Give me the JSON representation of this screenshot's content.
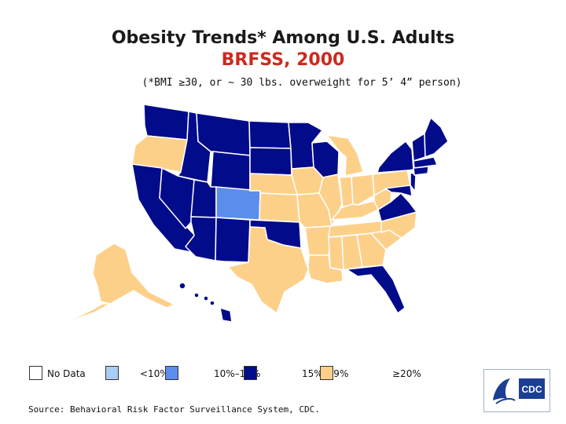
{
  "title": "Obesity Trends* Among U.S. Adults",
  "subtitle": "BRFSS, 2000",
  "footnote": "(*BMI ≥30, or ~ 30 lbs. overweight for 5’ 4” person)",
  "legend": [
    {
      "label": "No Data",
      "color": "#ffffff"
    },
    {
      "label": "<10%",
      "color": "#a9cdf5"
    },
    {
      "label": "10%–14%",
      "color": "#5b8ded"
    },
    {
      "label": "15%–19%",
      "color": "#020b8a"
    },
    {
      "label": "≥20%",
      "color": "#fdd08a"
    }
  ],
  "source": "Source: Behavioral Risk Factor Surveillance System, CDC.",
  "logo": {
    "text": "CDC",
    "color": "#1c3f94"
  },
  "colors": {
    "title": "#1a1a1a",
    "subtitle": "#cc2a1e",
    "state_border": "#ffffff"
  }
}
